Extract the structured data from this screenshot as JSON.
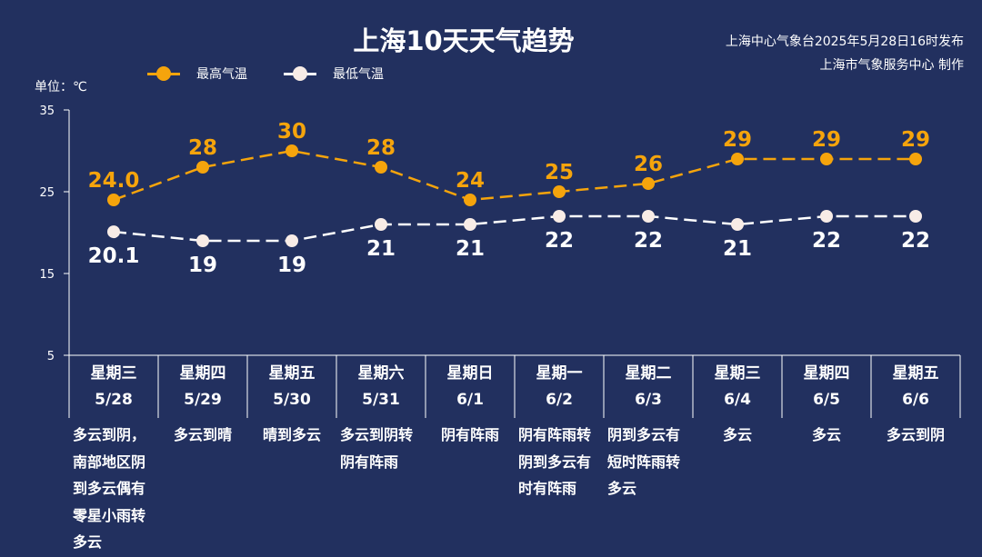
{
  "title": "上海10天天气趋势",
  "issuer": {
    "line1": "上海中心气象台2025年5月28日16时发布",
    "line2": "上海市气象服务中心 制作"
  },
  "legend": {
    "high": "最高气温",
    "low": "最低气温"
  },
  "unit_label": "单位：℃",
  "colors": {
    "background": "#22305f",
    "high": "#f5a40c",
    "low": "#ffffff"
  },
  "chart_data": {
    "type": "line",
    "categories": [
      "5/28",
      "5/29",
      "5/30",
      "5/31",
      "6/1",
      "6/2",
      "6/3",
      "6/4",
      "6/5",
      "6/6"
    ],
    "series": [
      {
        "name": "最高气温",
        "values": [
          24.0,
          28,
          30,
          28,
          24,
          25,
          26,
          29,
          29,
          29
        ],
        "labels": [
          "24.0",
          "28",
          "30",
          "28",
          "24",
          "25",
          "26",
          "29",
          "29",
          "29"
        ]
      },
      {
        "name": "最低气温",
        "values": [
          20.1,
          19,
          19,
          21,
          21,
          22,
          22,
          21,
          22,
          22
        ],
        "labels": [
          "20.1",
          "19",
          "19",
          "21",
          "21",
          "22",
          "22",
          "21",
          "22",
          "22"
        ]
      }
    ],
    "ylim": [
      5,
      35
    ],
    "yticks": [
      "5",
      "15",
      "25",
      "35"
    ],
    "line_style": "dashed",
    "legend_position": "top-left"
  },
  "days": [
    {
      "weekday": "星期三",
      "date": "5/28",
      "weather": "多云到阴，南部地区阴到多云偶有零星小雨转多云"
    },
    {
      "weekday": "星期四",
      "date": "5/29",
      "weather": "多云到晴"
    },
    {
      "weekday": "星期五",
      "date": "5/30",
      "weather": "晴到多云"
    },
    {
      "weekday": "星期六",
      "date": "5/31",
      "weather": "多云到阴转阴有阵雨"
    },
    {
      "weekday": "星期日",
      "date": "6/1",
      "weather": "阴有阵雨"
    },
    {
      "weekday": "星期一",
      "date": "6/2",
      "weather": "阴有阵雨转阴到多云有时有阵雨"
    },
    {
      "weekday": "星期二",
      "date": "6/3",
      "weather": "阴到多云有短时阵雨转多云"
    },
    {
      "weekday": "星期三",
      "date": "6/4",
      "weather": "多云"
    },
    {
      "weekday": "星期四",
      "date": "6/5",
      "weather": "多云"
    },
    {
      "weekday": "星期五",
      "date": "6/6",
      "weather": "多云到阴"
    }
  ]
}
